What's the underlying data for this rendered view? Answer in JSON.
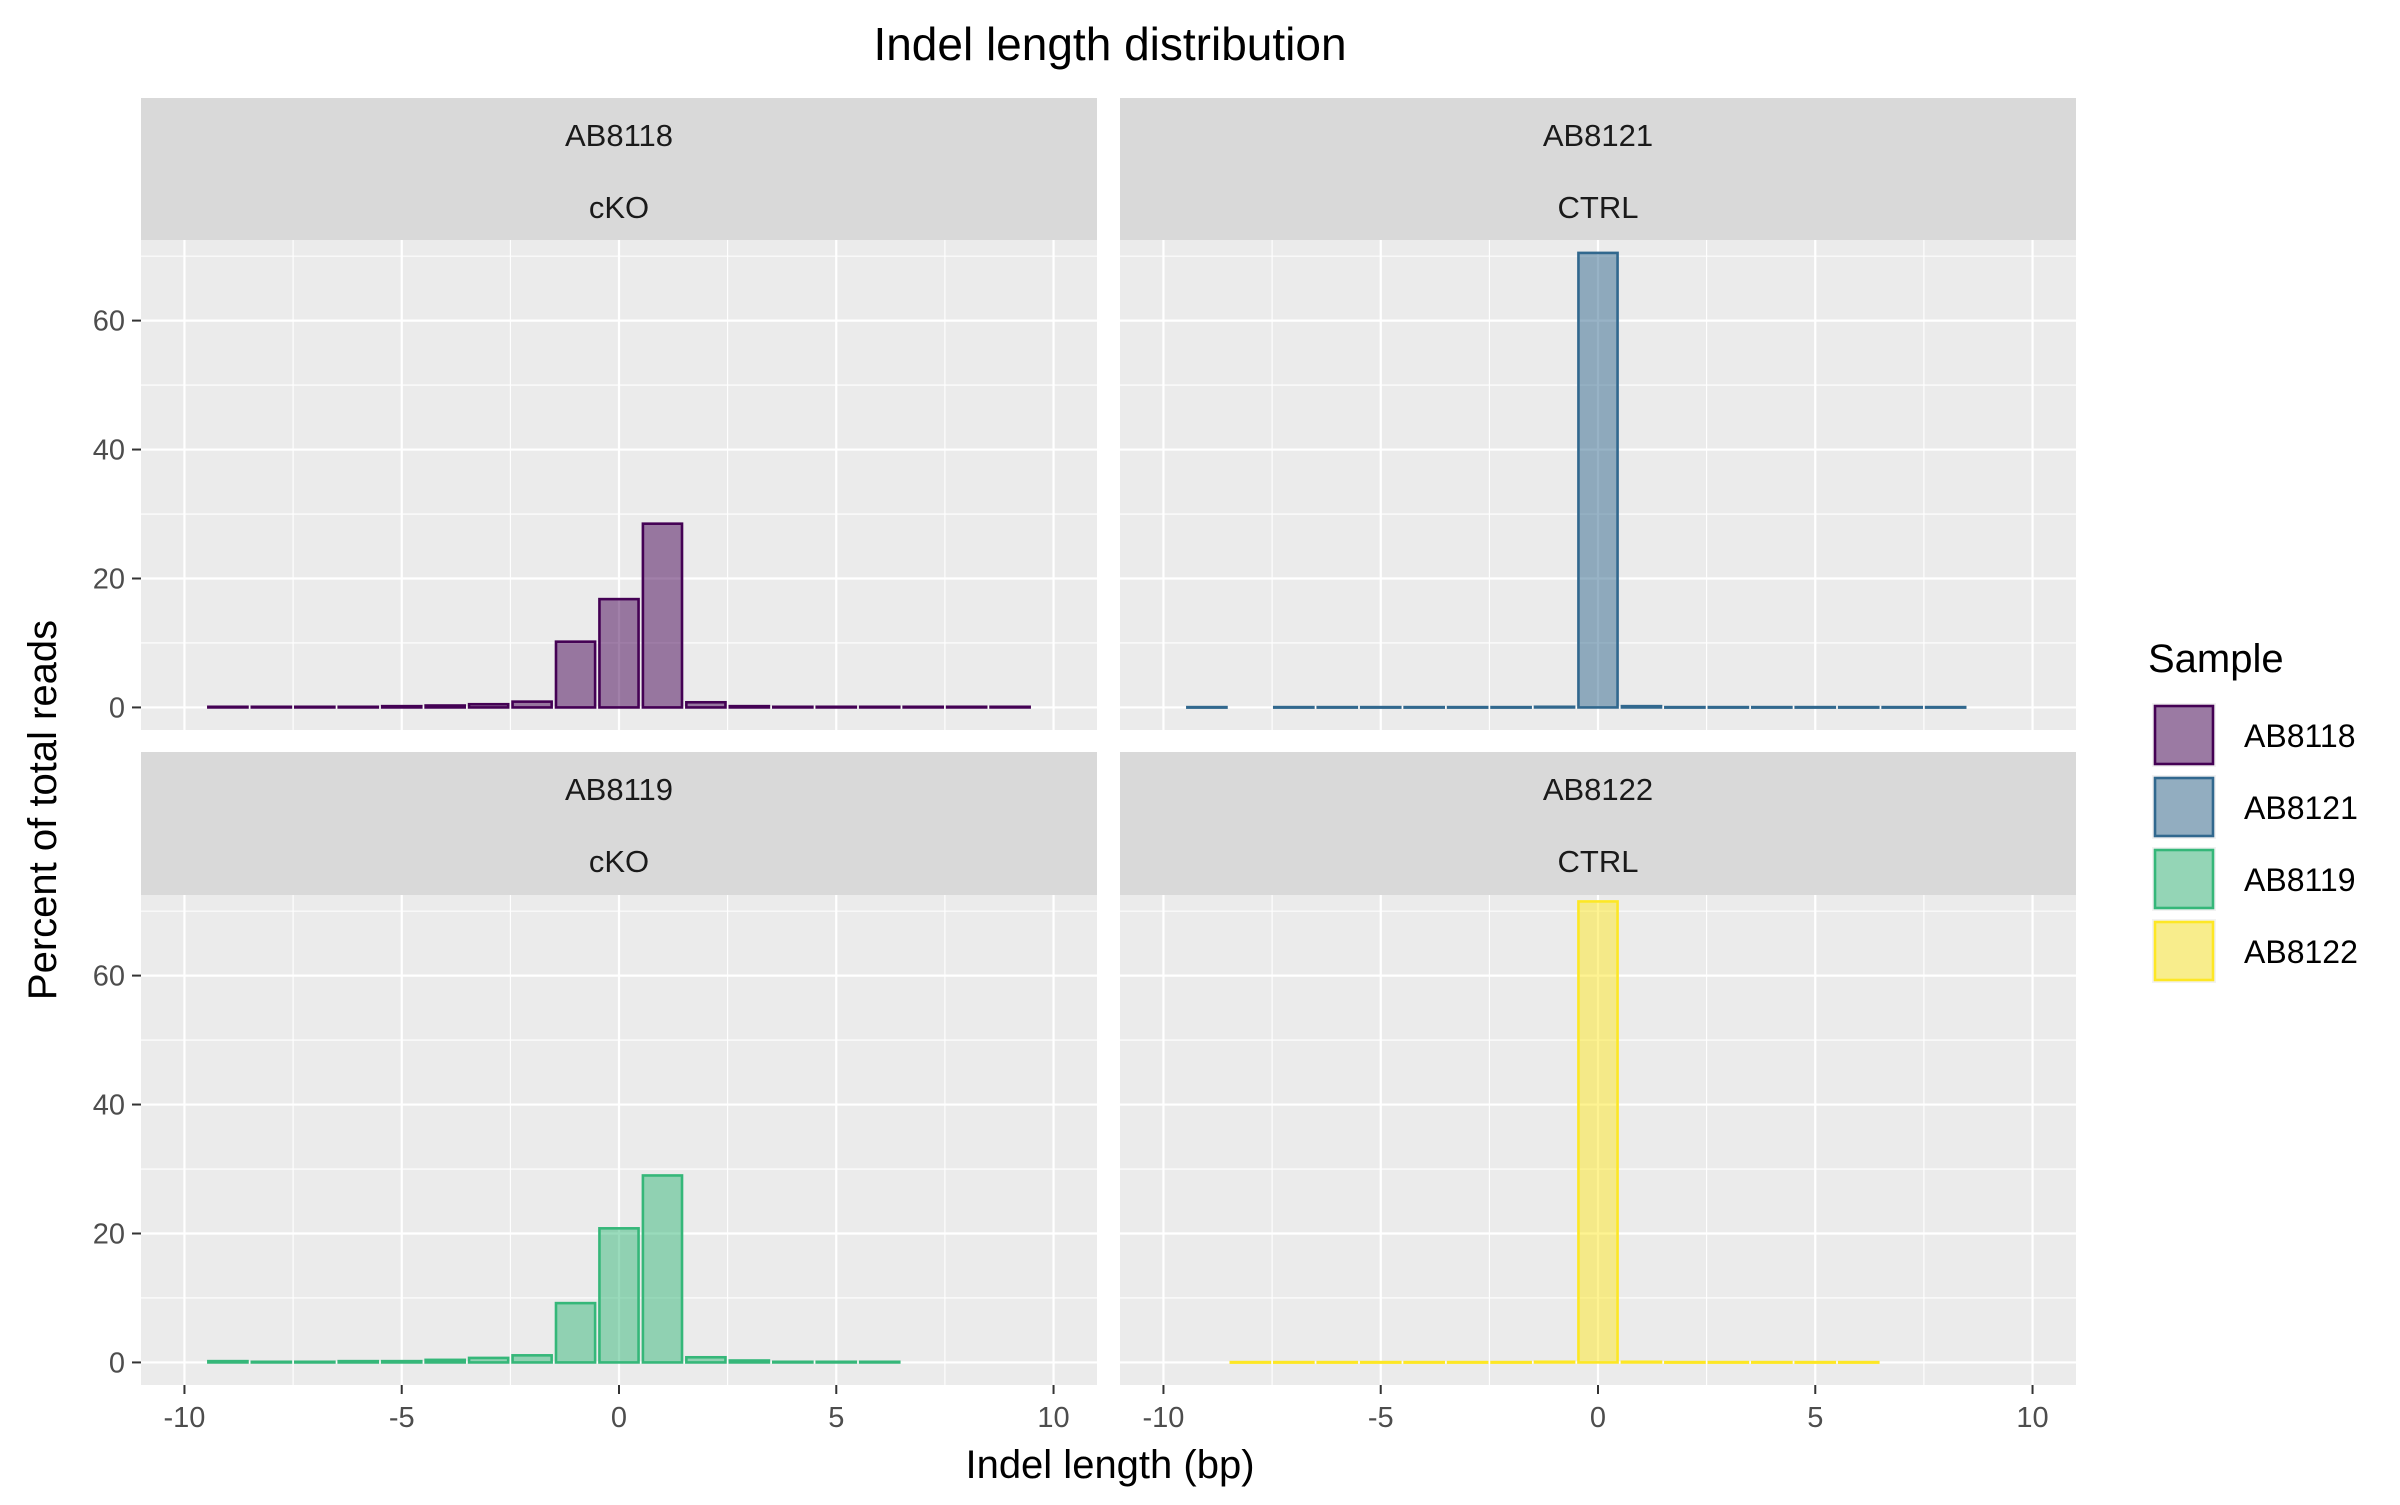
{
  "chart_data": {
    "type": "bar",
    "title": "Indel length distribution",
    "xlabel": "Indel length (bp)",
    "ylabel": "Percent of total reads",
    "xlim": [
      -11,
      11
    ],
    "ylim": [
      -3.5,
      72.5
    ],
    "x_ticks": [
      -10,
      -5,
      0,
      5,
      10
    ],
    "x_tick_labels": [
      "-10",
      "-5",
      "0",
      "5",
      "10"
    ],
    "y_ticks": [
      0,
      20,
      40,
      60
    ],
    "y_tick_labels": [
      "0",
      "20",
      "40",
      "60"
    ],
    "grid": true,
    "legend": {
      "title": "Sample",
      "placement": "right",
      "entries": [
        {
          "label": "AB8118",
          "color": "#440154"
        },
        {
          "label": "AB8121",
          "color": "#31688e"
        },
        {
          "label": "AB8119",
          "color": "#35b779"
        },
        {
          "label": "AB8122",
          "color": "#fde725"
        }
      ]
    },
    "panels": [
      {
        "sample": "AB8118",
        "group": "cKO",
        "color": "#440154",
        "bars": [
          {
            "x": -9,
            "y": 0.1
          },
          {
            "x": -8,
            "y": 0.1
          },
          {
            "x": -7,
            "y": 0.1
          },
          {
            "x": -6,
            "y": 0.1
          },
          {
            "x": -5,
            "y": 0.2
          },
          {
            "x": -4,
            "y": 0.3
          },
          {
            "x": -3,
            "y": 0.5
          },
          {
            "x": -2,
            "y": 0.9
          },
          {
            "x": -1,
            "y": 10.2
          },
          {
            "x": 0,
            "y": 16.8
          },
          {
            "x": 1,
            "y": 28.5
          },
          {
            "x": 2,
            "y": 0.8
          },
          {
            "x": 3,
            "y": 0.2
          },
          {
            "x": 4,
            "y": 0.1
          },
          {
            "x": 5,
            "y": 0.1
          },
          {
            "x": 6,
            "y": 0.1
          },
          {
            "x": 7,
            "y": 0.1
          },
          {
            "x": 8,
            "y": 0.1
          },
          {
            "x": 9,
            "y": 0.1
          }
        ]
      },
      {
        "sample": "AB8121",
        "group": "CTRL",
        "color": "#31688e",
        "bars": [
          {
            "x": -9,
            "y": 0.05
          },
          {
            "x": -7,
            "y": 0.05
          },
          {
            "x": -6,
            "y": 0.05
          },
          {
            "x": -5,
            "y": 0.05
          },
          {
            "x": -4,
            "y": 0.05
          },
          {
            "x": -3,
            "y": 0.05
          },
          {
            "x": -2,
            "y": 0.05
          },
          {
            "x": -1,
            "y": 0.1
          },
          {
            "x": 0,
            "y": 70.5
          },
          {
            "x": 1,
            "y": 0.2
          },
          {
            "x": 2,
            "y": 0.05
          },
          {
            "x": 3,
            "y": 0.05
          },
          {
            "x": 4,
            "y": 0.05
          },
          {
            "x": 5,
            "y": 0.05
          },
          {
            "x": 6,
            "y": 0.05
          },
          {
            "x": 7,
            "y": 0.05
          },
          {
            "x": 8,
            "y": 0.05
          }
        ]
      },
      {
        "sample": "AB8119",
        "group": "cKO",
        "color": "#35b779",
        "bars": [
          {
            "x": -9,
            "y": 0.2
          },
          {
            "x": -8,
            "y": 0.1
          },
          {
            "x": -7,
            "y": 0.1
          },
          {
            "x": -6,
            "y": 0.2
          },
          {
            "x": -5,
            "y": 0.2
          },
          {
            "x": -4,
            "y": 0.4
          },
          {
            "x": -3,
            "y": 0.7
          },
          {
            "x": -2,
            "y": 1.1
          },
          {
            "x": -1,
            "y": 9.2
          },
          {
            "x": 0,
            "y": 20.8
          },
          {
            "x": 1,
            "y": 29.0
          },
          {
            "x": 2,
            "y": 0.8
          },
          {
            "x": 3,
            "y": 0.3
          },
          {
            "x": 4,
            "y": 0.1
          },
          {
            "x": 5,
            "y": 0.1
          },
          {
            "x": 6,
            "y": 0.1
          }
        ]
      },
      {
        "sample": "AB8122",
        "group": "CTRL",
        "color": "#fde725",
        "bars": [
          {
            "x": -8,
            "y": 0.05
          },
          {
            "x": -7,
            "y": 0.05
          },
          {
            "x": -6,
            "y": 0.05
          },
          {
            "x": -5,
            "y": 0.05
          },
          {
            "x": -4,
            "y": 0.05
          },
          {
            "x": -3,
            "y": 0.05
          },
          {
            "x": -2,
            "y": 0.05
          },
          {
            "x": -1,
            "y": 0.1
          },
          {
            "x": 0,
            "y": 71.5
          },
          {
            "x": 1,
            "y": 0.1
          },
          {
            "x": 2,
            "y": 0.05
          },
          {
            "x": 3,
            "y": 0.05
          },
          {
            "x": 4,
            "y": 0.05
          },
          {
            "x": 5,
            "y": 0.05
          },
          {
            "x": 6,
            "y": 0.05
          }
        ]
      }
    ]
  }
}
